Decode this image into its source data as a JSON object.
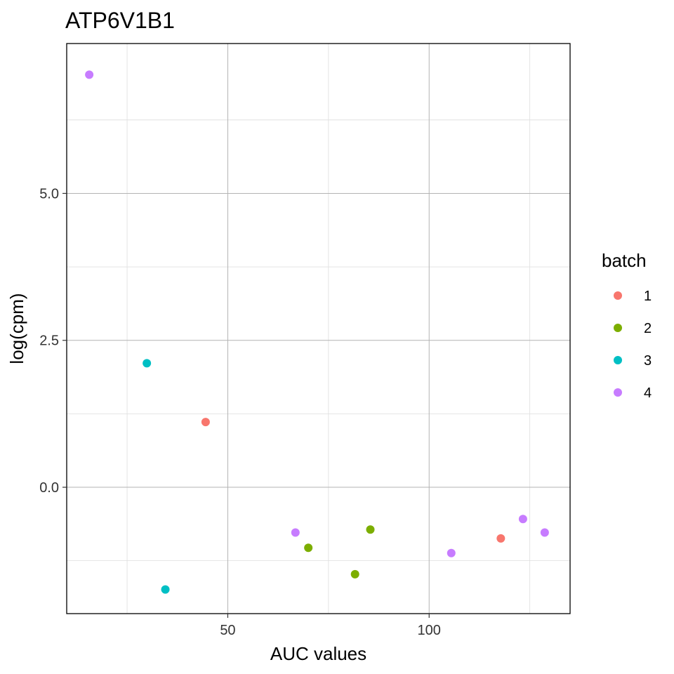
{
  "chart_data": {
    "type": "scatter",
    "title": "ATP6V1B1",
    "xlabel": "AUC values",
    "ylabel": "log(cpm)",
    "xlim": [
      10,
      135
    ],
    "ylim": [
      -2.15,
      7.55
    ],
    "x_ticks": [
      50,
      100
    ],
    "x_tick_labels": [
      "50",
      "100"
    ],
    "y_ticks": [
      0.0,
      2.5,
      5.0
    ],
    "y_tick_labels": [
      "0.0",
      "2.5",
      "5.0"
    ],
    "x_minor_ticks": [
      25,
      75,
      125
    ],
    "y_minor_ticks": [
      -1.25,
      1.25,
      3.75,
      6.25
    ],
    "grid": true,
    "legend": {
      "title": "batch",
      "position": "right",
      "entries": [
        {
          "label": "1",
          "color": "#F8766D"
        },
        {
          "label": "2",
          "color": "#7CAE00"
        },
        {
          "label": "3",
          "color": "#00BFC4"
        },
        {
          "label": "4",
          "color": "#C77CFF"
        }
      ]
    },
    "series": [
      {
        "name": "1",
        "color": "#F8766D",
        "points": [
          [
            44.5,
            1.11
          ],
          [
            117.8,
            -0.87
          ]
        ]
      },
      {
        "name": "2",
        "color": "#7CAE00",
        "points": [
          [
            70.0,
            -1.03
          ],
          [
            81.6,
            -1.48
          ],
          [
            85.4,
            -0.72
          ]
        ]
      },
      {
        "name": "3",
        "color": "#00BFC4",
        "points": [
          [
            29.9,
            2.11
          ],
          [
            34.5,
            -1.74
          ]
        ]
      },
      {
        "name": "4",
        "color": "#C77CFF",
        "points": [
          [
            15.6,
            7.02
          ],
          [
            66.8,
            -0.77
          ],
          [
            105.5,
            -1.12
          ],
          [
            123.3,
            -0.54
          ],
          [
            128.7,
            -0.77
          ]
        ]
      }
    ]
  }
}
